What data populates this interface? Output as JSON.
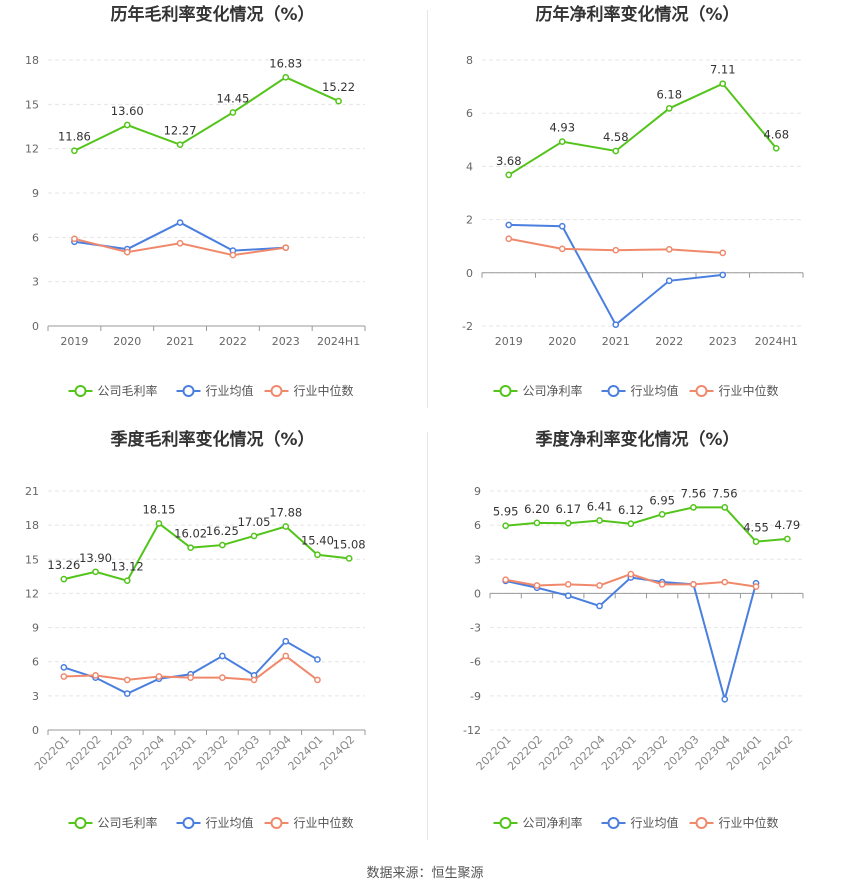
{
  "footer": "数据来源：恒生聚源",
  "legend_labels": {
    "gross": [
      "公司毛利率",
      "行业均值",
      "行业中位数"
    ],
    "net": [
      "公司净利率",
      "行业均值",
      "行业中位数"
    ]
  },
  "colors": {
    "company": "#52c41a",
    "avg": "#4a7fe0",
    "median": "#f0896b"
  },
  "chart_data": [
    {
      "type": "line",
      "title": "历年毛利率变化情况（%）",
      "categories": [
        "2019",
        "2020",
        "2021",
        "2022",
        "2023",
        "2024H1"
      ],
      "ylim": [
        0,
        18
      ],
      "yticks": [
        0,
        3,
        6,
        9,
        12,
        15,
        18
      ],
      "rotate_x": false,
      "series": [
        {
          "name": "公司毛利率",
          "values": [
            11.86,
            13.6,
            12.27,
            14.45,
            16.83,
            15.22
          ],
          "labels": [
            "11.86",
            "13.60",
            "12.27",
            "14.45",
            "16.83",
            "15.22"
          ]
        },
        {
          "name": "行业均值",
          "values": [
            5.7,
            5.2,
            7.0,
            5.1,
            5.3,
            null
          ]
        },
        {
          "name": "行业中位数",
          "values": [
            5.9,
            5.0,
            5.6,
            4.8,
            5.3,
            null
          ]
        }
      ]
    },
    {
      "type": "line",
      "title": "历年净利率变化情况（%）",
      "categories": [
        "2019",
        "2020",
        "2021",
        "2022",
        "2023",
        "2024H1"
      ],
      "ylim": [
        -2,
        8
      ],
      "yticks": [
        -2,
        0,
        2,
        4,
        6,
        8
      ],
      "rotate_x": false,
      "series": [
        {
          "name": "公司净利率",
          "values": [
            3.68,
            4.93,
            4.58,
            6.18,
            7.11,
            4.68
          ],
          "labels": [
            "3.68",
            "4.93",
            "4.58",
            "6.18",
            "7.11",
            "4.68"
          ]
        },
        {
          "name": "行业均值",
          "values": [
            1.8,
            1.75,
            -1.95,
            -0.3,
            -0.08,
            null
          ]
        },
        {
          "name": "行业中位数",
          "values": [
            1.28,
            0.9,
            0.85,
            0.88,
            0.75,
            null
          ]
        }
      ]
    },
    {
      "type": "line",
      "title": "季度毛利率变化情况（%）",
      "categories": [
        "2022Q1",
        "2022Q2",
        "2022Q3",
        "2022Q4",
        "2023Q1",
        "2023Q2",
        "2023Q3",
        "2023Q4",
        "2024Q1",
        "2024Q2"
      ],
      "ylim": [
        0,
        21
      ],
      "yticks": [
        0,
        3,
        6,
        9,
        12,
        15,
        18,
        21
      ],
      "rotate_x": true,
      "series": [
        {
          "name": "公司毛利率",
          "values": [
            13.26,
            13.9,
            13.12,
            18.15,
            16.02,
            16.25,
            17.05,
            17.88,
            15.4,
            15.08
          ],
          "labels": [
            "13.26",
            "13.90",
            "13.12",
            "18.15",
            "16.02",
            "16.25",
            "17.05",
            "17.88",
            "15.40",
            "15.08"
          ]
        },
        {
          "name": "行业均值",
          "values": [
            5.5,
            4.6,
            3.2,
            4.5,
            4.9,
            6.5,
            4.8,
            7.8,
            6.2,
            null
          ]
        },
        {
          "name": "行业中位数",
          "values": [
            4.7,
            4.8,
            4.4,
            4.7,
            4.6,
            4.6,
            4.4,
            6.5,
            4.4,
            null
          ]
        }
      ]
    },
    {
      "type": "line",
      "title": "季度净利率变化情况（%）",
      "categories": [
        "2022Q1",
        "2022Q2",
        "2022Q3",
        "2022Q4",
        "2023Q1",
        "2023Q2",
        "2023Q3",
        "2023Q4",
        "2024Q1",
        "2024Q2"
      ],
      "ylim": [
        -12,
        9
      ],
      "yticks": [
        -12,
        -9,
        -6,
        -3,
        0,
        3,
        6,
        9
      ],
      "rotate_x": true,
      "series": [
        {
          "name": "公司净利率",
          "values": [
            5.95,
            6.2,
            6.17,
            6.41,
            6.12,
            6.95,
            7.56,
            7.56,
            4.55,
            4.79
          ],
          "labels": [
            "5.95",
            "6.20",
            "6.17",
            "6.41",
            "6.12",
            "6.95",
            "7.56",
            "7.56",
            "4.55",
            "4.79"
          ]
        },
        {
          "name": "行业均值",
          "values": [
            1.1,
            0.5,
            -0.2,
            -1.1,
            1.4,
            1.0,
            0.8,
            -9.3,
            0.9,
            null
          ]
        },
        {
          "name": "行业中位数",
          "values": [
            1.2,
            0.7,
            0.8,
            0.7,
            1.7,
            0.8,
            0.8,
            1.0,
            0.6,
            null
          ]
        }
      ]
    }
  ]
}
